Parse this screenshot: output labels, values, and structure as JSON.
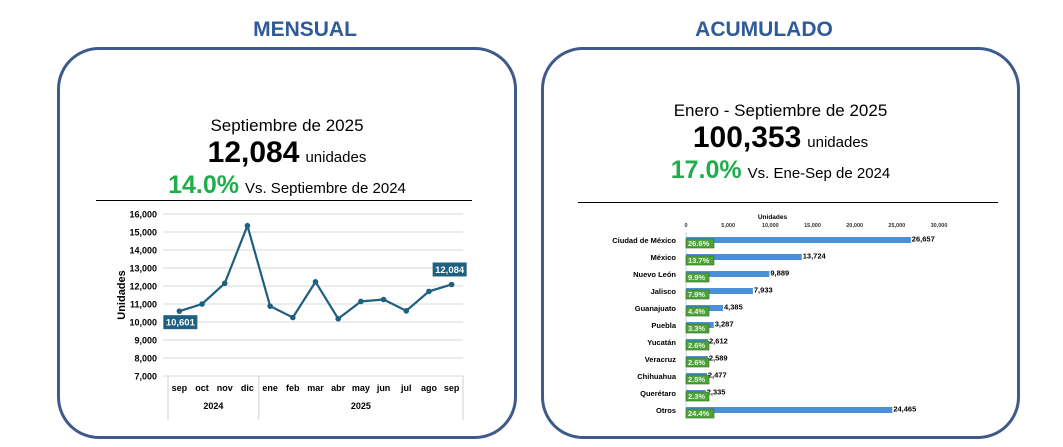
{
  "mensual": {
    "title": "MENSUAL",
    "period": "Septiembre de 2025",
    "value": "12,084",
    "unit": "unidades",
    "pct": "14.0%",
    "vs": "Vs. Septiembre de 2024"
  },
  "acumulado": {
    "title": "ACUMULADO",
    "period": "Enero - Septiembre de 2025",
    "value": "100,353",
    "unit": "unidades",
    "pct": "17.0%",
    "vs": "Vs. Ene-Sep de 2024"
  },
  "colors": {
    "line": "#1f5f80",
    "bar": "#4a90d9",
    "pct_box": "#4ea23a",
    "accent": "#2f5b9a"
  },
  "chart_data": [
    {
      "type": "line",
      "ylabel": "Unidades",
      "ylim": [
        7000,
        16000
      ],
      "yticks": [
        7000,
        8000,
        9000,
        10000,
        11000,
        12000,
        13000,
        14000,
        15000,
        16000
      ],
      "ytick_labels": [
        "7,000",
        "8,000",
        "9,000",
        "10,000",
        "11,000",
        "12,000",
        "13,000",
        "14,000",
        "15,000",
        "16,000"
      ],
      "categories": [
        "sep",
        "oct",
        "nov",
        "dic",
        "ene",
        "feb",
        "mar",
        "abr",
        "may",
        "jun",
        "jul",
        "ago",
        "sep"
      ],
      "groups": [
        {
          "label": "2024",
          "count": 4
        },
        {
          "label": "2025",
          "count": 9
        }
      ],
      "values": [
        10601,
        11000,
        12150,
        15350,
        10880,
        10250,
        12230,
        10180,
        11140,
        11250,
        10620,
        11700,
        12084
      ],
      "data_labels": [
        {
          "index": 0,
          "text": "10,601"
        },
        {
          "index": 12,
          "text": "12,084"
        }
      ],
      "grid": true
    },
    {
      "type": "bar",
      "orientation": "horizontal",
      "xlabel": "Unidades",
      "xlim": [
        0,
        30000
      ],
      "xticks": [
        0,
        5000,
        10000,
        15000,
        20000,
        25000,
        30000
      ],
      "xtick_labels": [
        "0",
        "5,000",
        "10,000",
        "15,000",
        "20,000",
        "25,000",
        "30,000"
      ],
      "categories": [
        "Ciudad de México",
        "México",
        "Nuevo León",
        "Jalisco",
        "Guanajuato",
        "Puebla",
        "Yucatán",
        "Veracruz",
        "Chihuahua",
        "Querétaro",
        "Otros"
      ],
      "values": [
        26657,
        13724,
        9889,
        7933,
        4385,
        3287,
        2612,
        2589,
        2477,
        2335,
        24465
      ],
      "value_labels": [
        "26,657",
        "13,724",
        "9,889",
        "7,933",
        "4,385",
        "3,287",
        "2,612",
        "2,589",
        "2,477",
        "2,335",
        "24,465"
      ],
      "shares": [
        "26.6%",
        "13.7%",
        "9.9%",
        "7.9%",
        "4.4%",
        "3.3%",
        "2.6%",
        "2.6%",
        "2.5%",
        "2.3%",
        "24.4%"
      ]
    }
  ]
}
